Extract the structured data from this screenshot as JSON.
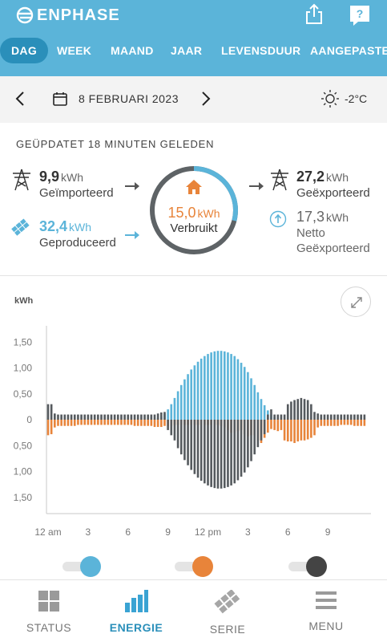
{
  "app": {
    "brand": "ENPHASE"
  },
  "colors": {
    "header_bg": "#5bb4d9",
    "active_tab": "#2a8fba",
    "produced": "#5bb4d9",
    "consumed": "#e8843a",
    "imported": "#555a5e"
  },
  "tabs": [
    "DAG",
    "WEEK",
    "MAAND",
    "JAAR",
    "LEVENSDUUR",
    "AANGEPASTE"
  ],
  "active_tab": "DAG",
  "date": {
    "label": "8 FEBRUARI 2023",
    "temperature": "-2°C",
    "weather_icon": "sun-icon"
  },
  "updated": "GEÜPDATET 18 MINUTEN GELEDEN",
  "stats": {
    "imported": {
      "value": "9,9",
      "unit": "kWh",
      "label": "Geïmporteerd"
    },
    "produced": {
      "value": "32,4",
      "unit": "kWh",
      "label": "Geproduceerd"
    },
    "consumed": {
      "value": "15,0",
      "unit": "kWh",
      "label": "Verbruikt"
    },
    "exported": {
      "value": "27,2",
      "unit": "kWh",
      "label": "Geëxporteerd"
    },
    "net_exported": {
      "value": "17,3",
      "unit": "kWh",
      "label_line1": "Netto",
      "label_line2": "Geëxporteerd"
    }
  },
  "dial": {
    "produced_fraction": 0.29
  },
  "nav": [
    {
      "label": "STATUS",
      "icon": "grid-icon",
      "active": false
    },
    {
      "label": "ENERGIE",
      "icon": "bar-chart-icon",
      "active": true
    },
    {
      "label": "SERIE",
      "icon": "solar-panel-icon",
      "active": false
    },
    {
      "label": "MENU",
      "icon": "menu-icon",
      "active": false
    }
  ],
  "chart_data": {
    "type": "bar",
    "ylabel": "kWh",
    "ytick_labels": [
      "1,50",
      "1,00",
      "0,50",
      "0",
      "0,50",
      "1,00",
      "1,50"
    ],
    "ytick_values": [
      1.5,
      1.0,
      0.5,
      0,
      -0.5,
      -1.0,
      -1.5
    ],
    "ylim": [
      -1.75,
      1.75
    ],
    "xtick_labels": [
      "12 am",
      "3",
      "6",
      "9",
      "12 pm",
      "3",
      "6",
      "9"
    ],
    "xtick_hours": [
      0,
      3,
      6,
      9,
      12,
      15,
      18,
      21
    ],
    "x_hours": [
      0,
      0.25,
      0.5,
      0.75,
      1,
      1.25,
      1.5,
      1.75,
      2,
      2.25,
      2.5,
      2.75,
      3,
      3.25,
      3.5,
      3.75,
      4,
      4.25,
      4.5,
      4.75,
      5,
      5.25,
      5.5,
      5.75,
      6,
      6.25,
      6.5,
      6.75,
      7,
      7.25,
      7.5,
      7.75,
      8,
      8.25,
      8.5,
      8.75,
      9,
      9.25,
      9.5,
      9.75,
      10,
      10.25,
      10.5,
      10.75,
      11,
      11.25,
      11.5,
      11.75,
      12,
      12.25,
      12.5,
      12.75,
      13,
      13.25,
      13.5,
      13.75,
      14,
      14.25,
      14.5,
      14.75,
      15,
      15.25,
      15.5,
      15.75,
      16,
      16.25,
      16.5,
      16.75,
      17,
      17.25,
      17.5,
      17.75,
      18,
      18.25,
      18.5,
      18.75,
      19,
      19.25,
      19.5,
      19.75,
      20,
      20.25,
      20.5,
      20.75,
      21,
      21.25,
      21.5,
      21.75,
      22,
      22.25,
      22.5,
      22.75,
      23,
      23.25,
      23.5,
      23.75
    ],
    "series": [
      {
        "color": "#5bb4d9",
        "values": [
          0,
          0,
          0,
          0,
          0,
          0,
          0,
          0,
          0,
          0,
          0,
          0,
          0,
          0,
          0,
          0,
          0,
          0,
          0,
          0,
          0,
          0,
          0,
          0,
          0,
          0,
          0,
          0,
          0,
          0,
          0,
          0,
          0.01,
          0.03,
          0.06,
          0.12,
          0.2,
          0.3,
          0.42,
          0.55,
          0.67,
          0.78,
          0.88,
          0.97,
          1.05,
          1.12,
          1.18,
          1.23,
          1.27,
          1.3,
          1.32,
          1.33,
          1.33,
          1.32,
          1.3,
          1.27,
          1.23,
          1.17,
          1.1,
          1.02,
          0.92,
          0.8,
          0.67,
          0.53,
          0.4,
          0.28,
          0.18,
          0.1,
          0.05,
          0.02,
          0,
          0,
          0,
          0,
          0,
          0,
          0,
          0,
          0,
          0,
          0,
          0,
          0,
          0,
          0,
          0,
          0,
          0,
          0,
          0,
          0,
          0,
          0,
          0,
          0,
          0
        ]
      },
      {
        "color": "#e8843a",
        "values": [
          -0.3,
          -0.28,
          -0.15,
          -0.12,
          -0.12,
          -0.12,
          -0.12,
          -0.12,
          -0.12,
          -0.1,
          -0.1,
          -0.1,
          -0.1,
          -0.1,
          -0.1,
          -0.1,
          -0.1,
          -0.1,
          -0.1,
          -0.1,
          -0.1,
          -0.1,
          -0.1,
          -0.1,
          -0.1,
          -0.1,
          -0.12,
          -0.12,
          -0.12,
          -0.12,
          -0.12,
          -0.12,
          -0.14,
          -0.14,
          -0.14,
          -0.12,
          -0.12,
          -0.12,
          -0.1,
          -0.1,
          -0.1,
          -0.1,
          -0.1,
          -0.1,
          -0.1,
          -0.1,
          -0.1,
          -0.1,
          -0.1,
          -0.1,
          -0.1,
          -0.1,
          -0.12,
          -0.15,
          -0.2,
          -0.25,
          -0.25,
          -0.22,
          -0.2,
          -0.28,
          -0.32,
          -0.3,
          -0.3,
          -0.4,
          -0.45,
          -0.35,
          -0.25,
          -0.18,
          -0.2,
          -0.22,
          -0.2,
          -0.4,
          -0.42,
          -0.42,
          -0.45,
          -0.42,
          -0.4,
          -0.4,
          -0.38,
          -0.35,
          -0.3,
          -0.15,
          -0.12,
          -0.12,
          -0.12,
          -0.12,
          -0.12,
          -0.12,
          -0.1,
          -0.1,
          -0.1,
          -0.1,
          -0.12,
          -0.12,
          -0.12,
          -0.12
        ]
      },
      {
        "color": "#555a5e",
        "values": [
          0.3,
          0.3,
          0.12,
          0.1,
          0.1,
          0.1,
          0.1,
          0.1,
          0.1,
          0.1,
          0.1,
          0.1,
          0.1,
          0.1,
          0.1,
          0.1,
          0.1,
          0.1,
          0.1,
          0.1,
          0.1,
          0.1,
          0.1,
          0.1,
          0.1,
          0.1,
          0.1,
          0.1,
          0.1,
          0.1,
          0.1,
          0.1,
          0.1,
          0.12,
          0.14,
          0.15,
          -0.2,
          -0.3,
          -0.4,
          -0.55,
          -0.67,
          -0.78,
          -0.88,
          -0.97,
          -1.05,
          -1.12,
          -1.18,
          -1.23,
          -1.27,
          -1.3,
          -1.32,
          -1.33,
          -1.33,
          -1.32,
          -1.3,
          -1.27,
          -1.23,
          -1.17,
          -1.1,
          -1.02,
          -0.92,
          -0.8,
          -0.67,
          -0.53,
          -0.4,
          -0.28,
          0.1,
          0.2,
          0.1,
          0.1,
          0.1,
          0.1,
          0.3,
          0.35,
          0.38,
          0.4,
          0.42,
          0.4,
          0.38,
          0.3,
          0.15,
          0.12,
          0.1,
          0.1,
          0.1,
          0.1,
          0.1,
          0.1,
          0.1,
          0.1,
          0.1,
          0.1,
          0.1,
          0.1,
          0.1,
          0.1
        ]
      }
    ]
  }
}
